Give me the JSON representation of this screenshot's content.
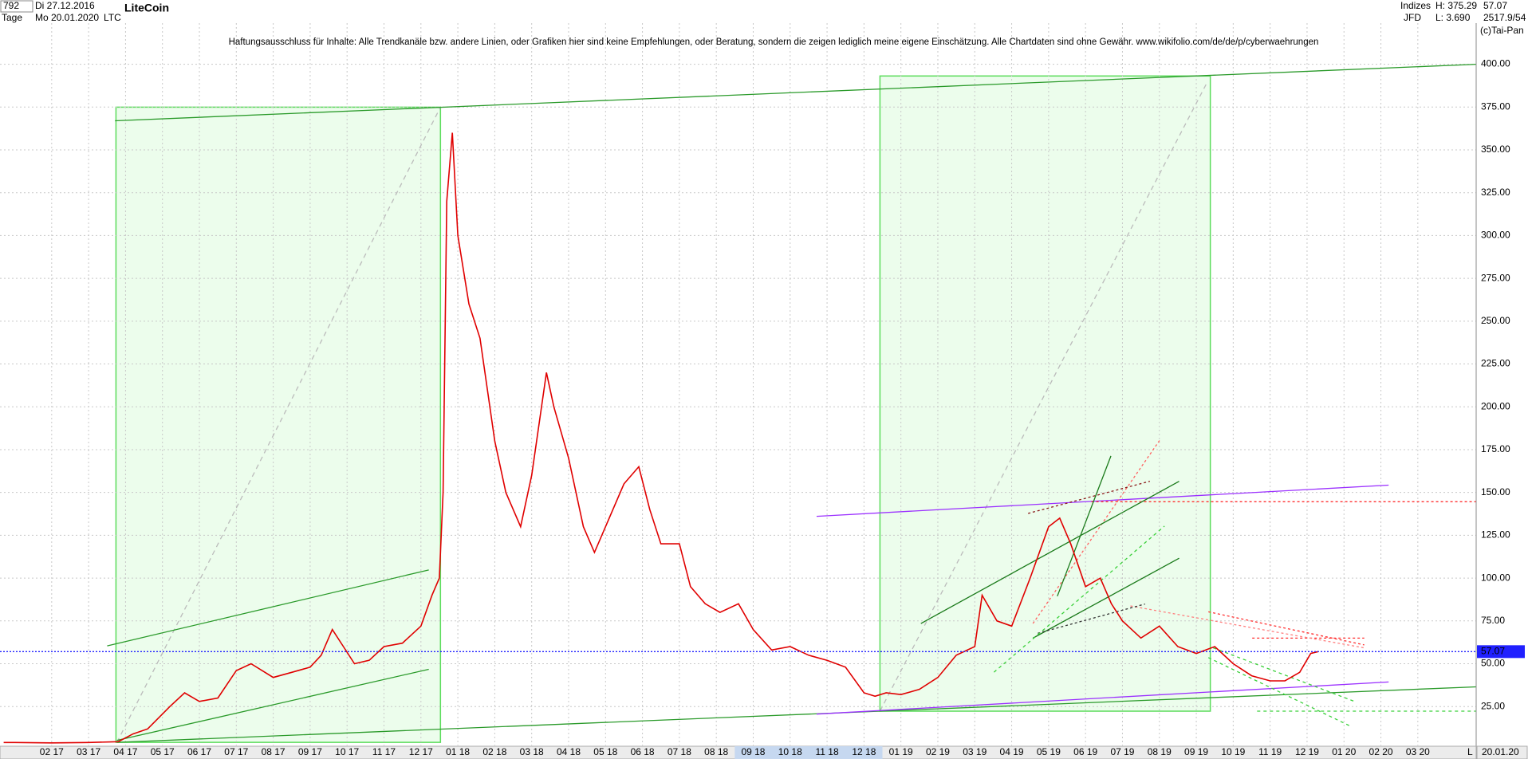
{
  "header": {
    "count": "792",
    "start": "Di 27.12.2016",
    "period": "Tage",
    "end": "Mo 20.01.2020",
    "name": "LiteCoin",
    "symbol": "LTC",
    "disclaimer": "Haftungsausschluss für Inhalte: Alle Trendkanäle bzw. andere Linien, oder Grafiken hier sind keine Empfehlungen, oder Beratung, sondern die zeigen lediglich meine eigene Einschätzung. Alle Chartdaten sind ohne Gewähr.  www.wikifolio.com/de/de/p/cyberwaehrungen",
    "group": "Indizes",
    "source": "JFD",
    "high": "H: 375.29",
    "low": "L: 3.690",
    "ratio": "2517.9/54",
    "copyright": "(c)Tai-Pan",
    "date_box": "20.01.20",
    "scale_mode": "L"
  },
  "chart_data": {
    "type": "line",
    "current_price": 57.07,
    "color": "#e00000",
    "grid": true,
    "xlim": [
      -0.4,
      39.58
    ],
    "ylim": [
      2.3,
      424
    ],
    "xticks": [
      {
        "value": 1,
        "label": "02 17"
      },
      {
        "value": 2,
        "label": "03 17"
      },
      {
        "value": 3,
        "label": "04 17"
      },
      {
        "value": 4,
        "label": "05 17"
      },
      {
        "value": 5,
        "label": "06 17"
      },
      {
        "value": 6,
        "label": "07 17"
      },
      {
        "value": 7,
        "label": "08 17"
      },
      {
        "value": 8,
        "label": "09 17"
      },
      {
        "value": 9,
        "label": "10 17"
      },
      {
        "value": 10,
        "label": "11 17"
      },
      {
        "value": 11,
        "label": "12 17"
      },
      {
        "value": 12,
        "label": "01 18"
      },
      {
        "value": 13,
        "label": "02 18"
      },
      {
        "value": 14,
        "label": "03 18"
      },
      {
        "value": 15,
        "label": "04 18"
      },
      {
        "value": 16,
        "label": "05 18"
      },
      {
        "value": 17,
        "label": "06 18"
      },
      {
        "value": 18,
        "label": "07 18"
      },
      {
        "value": 19,
        "label": "08 18"
      },
      {
        "value": 20,
        "label": "09 18"
      },
      {
        "value": 21,
        "label": "10 18"
      },
      {
        "value": 22,
        "label": "11 18"
      },
      {
        "value": 23,
        "label": "12 18"
      },
      {
        "value": 24,
        "label": "01 19"
      },
      {
        "value": 25,
        "label": "02 19"
      },
      {
        "value": 26,
        "label": "03 19"
      },
      {
        "value": 27,
        "label": "04 19"
      },
      {
        "value": 28,
        "label": "05 19"
      },
      {
        "value": 29,
        "label": "06 19"
      },
      {
        "value": 30,
        "label": "07 19"
      },
      {
        "value": 31,
        "label": "08 19"
      },
      {
        "value": 32,
        "label": "09 19"
      },
      {
        "value": 33,
        "label": "10 19"
      },
      {
        "value": 34,
        "label": "11 19"
      },
      {
        "value": 35,
        "label": "12 19"
      },
      {
        "value": 36,
        "label": "01 20"
      },
      {
        "value": 37,
        "label": "02 20"
      },
      {
        "value": 38,
        "label": "03 20"
      }
    ],
    "yticks": [
      {
        "value": 25,
        "label": "25.00"
      },
      {
        "value": 50,
        "label": "50.00"
      },
      {
        "value": 75,
        "label": "75.00"
      },
      {
        "value": 100,
        "label": "100.00"
      },
      {
        "value": 125,
        "label": "125.00"
      },
      {
        "value": 150,
        "label": "150.00"
      },
      {
        "value": 175,
        "label": "175.00"
      },
      {
        "value": 200,
        "label": "200.00"
      },
      {
        "value": 225,
        "label": "225.00"
      },
      {
        "value": 250,
        "label": "250.00"
      },
      {
        "value": 275,
        "label": "275.00"
      },
      {
        "value": 300,
        "label": "300.00"
      },
      {
        "value": 325,
        "label": "325.00"
      },
      {
        "value": 350,
        "label": "350.00"
      },
      {
        "value": 375,
        "label": "375.00"
      },
      {
        "value": 400,
        "label": "400.00"
      }
    ],
    "x": [
      -0.3,
      0,
      1,
      2,
      2.8,
      3.2,
      3.6,
      4.2,
      4.6,
      5.0,
      5.5,
      6.0,
      6.4,
      7.0,
      7.5,
      8.0,
      8.3,
      8.6,
      8.9,
      9.2,
      9.6,
      10.0,
      10.5,
      11.0,
      11.3,
      11.5,
      11.6,
      11.7,
      11.85,
      12.0,
      12.3,
      12.6,
      13.0,
      13.3,
      13.7,
      14.0,
      14.4,
      14.6,
      15.0,
      15.4,
      15.7,
      16.2,
      16.5,
      16.9,
      17.2,
      17.5,
      18.0,
      18.3,
      18.7,
      19.1,
      19.6,
      20.0,
      20.5,
      21.0,
      21.5,
      22.0,
      22.5,
      23.0,
      23.3,
      23.6,
      24.0,
      24.5,
      25.0,
      25.5,
      26.0,
      26.2,
      26.6,
      27.0,
      27.5,
      28.0,
      28.3,
      28.6,
      29.0,
      29.4,
      29.7,
      30.0,
      30.5,
      31.0,
      31.5,
      32.0,
      32.5,
      33.0,
      33.5,
      34.0,
      34.4,
      34.8,
      35.1,
      35.3
    ],
    "values": [
      4,
      4,
      3.8,
      4,
      4.5,
      9,
      12,
      25,
      33,
      28,
      30,
      46,
      50,
      42,
      45,
      48,
      55,
      70,
      60,
      50,
      52,
      60,
      62,
      72,
      90,
      100,
      150,
      320,
      360,
      300,
      260,
      240,
      180,
      150,
      130,
      160,
      220,
      200,
      170,
      130,
      115,
      140,
      155,
      165,
      140,
      120,
      120,
      95,
      85,
      80,
      85,
      70,
      58,
      60,
      55,
      52,
      48,
      33,
      31,
      33,
      32,
      35,
      42,
      55,
      60,
      90,
      75,
      72,
      100,
      130,
      135,
      120,
      95,
      100,
      85,
      75,
      65,
      72,
      60,
      56,
      60,
      50,
      43,
      40,
      40,
      45,
      56,
      57.07
    ]
  }
}
